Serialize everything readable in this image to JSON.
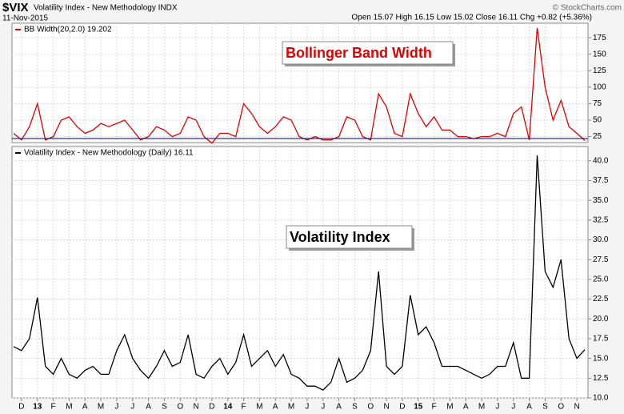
{
  "header": {
    "symbol": "$VIX",
    "name": "Volatility Index - New Methodology INDX",
    "date": "11-Nov-2015",
    "quote": "Open 15.07 High 16.15 Low 15.02 Close 16.11 Chg +0.82 (+5.36%)",
    "credit": "© StockCharts.com"
  },
  "chart_data": [
    {
      "type": "line",
      "legend": "BB Width(20,2.0) 19.202",
      "annotation": "Bollinger Band Width",
      "series": [
        {
          "name": "BB Width(20,2.0)",
          "color": "#e00000",
          "values": [
            30,
            20,
            40,
            75,
            20,
            25,
            50,
            55,
            40,
            30,
            35,
            45,
            40,
            45,
            50,
            35,
            20,
            25,
            40,
            35,
            25,
            30,
            55,
            50,
            25,
            15,
            30,
            30,
            25,
            75,
            60,
            40,
            30,
            40,
            55,
            50,
            25,
            20,
            25,
            20,
            20,
            25,
            55,
            50,
            25,
            20,
            90,
            70,
            30,
            25,
            90,
            60,
            40,
            55,
            35,
            35,
            25,
            25,
            22,
            25,
            25,
            30,
            25,
            60,
            70,
            20,
            190,
            100,
            50,
            80,
            40,
            30,
            19.2
          ]
        }
      ],
      "ylim": [
        16,
        197
      ],
      "yticks": [
        25,
        50,
        75,
        100,
        125,
        150,
        175
      ],
      "grid": true
    },
    {
      "type": "line",
      "legend": "Volatility Index - New Methodology (Daily) 16.11",
      "annotation": "Volatility Index",
      "categories": [
        null,
        "D",
        null,
        "13",
        null,
        "F",
        null,
        "M",
        null,
        "A",
        null,
        "M",
        null,
        "J",
        null,
        "J",
        null,
        "A",
        null,
        "S",
        null,
        "O",
        null,
        "N",
        null,
        "D",
        null,
        "14",
        null,
        "F",
        null,
        "M",
        null,
        "A",
        null,
        "M",
        null,
        "J",
        null,
        "J",
        null,
        "A",
        null,
        "S",
        null,
        "O",
        null,
        "N",
        null,
        "D",
        null,
        "15",
        null,
        "F",
        null,
        "M",
        null,
        "A",
        null,
        "M",
        null,
        "J",
        null,
        "J",
        null,
        "A",
        null,
        "S",
        null,
        "O",
        null,
        "N",
        null
      ],
      "series": [
        {
          "name": "Volatility Index - New Methodology",
          "color": "#000000",
          "values": [
            16.5,
            16,
            17.5,
            22.7,
            14,
            13,
            15,
            13,
            12.5,
            13.5,
            14,
            13,
            13,
            16,
            18,
            15,
            13.5,
            12.5,
            14,
            16,
            14,
            14.5,
            18,
            13,
            12.5,
            14,
            15,
            13,
            14.5,
            18,
            14,
            15,
            16,
            14,
            15.5,
            13,
            12.5,
            11.5,
            11.5,
            11,
            12,
            15,
            12,
            12.5,
            13.5,
            16,
            26,
            14,
            13,
            14,
            23,
            18,
            19,
            17,
            14,
            14,
            14,
            13.5,
            13,
            12.5,
            13,
            14,
            14,
            17,
            12.5,
            12.5,
            40.7,
            26,
            24,
            27.5,
            17.5,
            15,
            16.11
          ]
        }
      ],
      "ylim": [
        10,
        41.8
      ],
      "yticks": [
        {
          "value": 10,
          "label": "10.0"
        },
        12.5,
        {
          "value": 15,
          "label": "15.0"
        },
        17.5,
        {
          "value": 20,
          "label": "20.0"
        },
        22.5,
        {
          "value": 25,
          "label": "25.0"
        },
        27.5,
        {
          "value": 30,
          "label": "30.0"
        },
        32.5,
        {
          "value": 35,
          "label": "35.0"
        },
        37.5,
        {
          "value": 40,
          "label": "40.0"
        }
      ],
      "grid": true
    }
  ]
}
